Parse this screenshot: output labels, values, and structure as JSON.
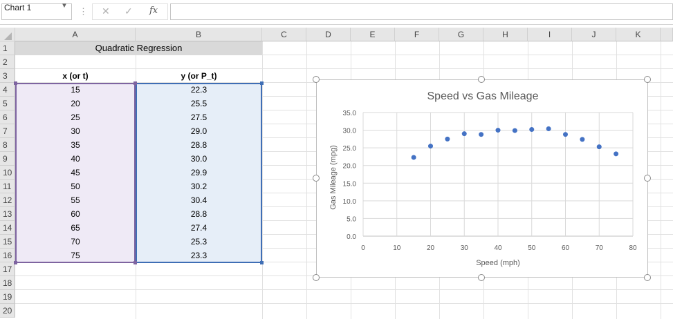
{
  "formula_bar": {
    "name_box": "Chart 1",
    "menu_dots": "⋮",
    "cancel_glyph": "✕",
    "enter_glyph": "✓",
    "fx_label": "fx",
    "formula_value": ""
  },
  "columns": [
    "A",
    "B",
    "C",
    "D",
    "E",
    "F",
    "G",
    "H",
    "I",
    "J",
    "K"
  ],
  "rows": [
    "1",
    "2",
    "3",
    "4",
    "5",
    "6",
    "7",
    "8",
    "9",
    "10",
    "11",
    "12",
    "13",
    "14",
    "15",
    "16",
    "17",
    "18",
    "19",
    "20"
  ],
  "sheet": {
    "title": "Quadratic Regression",
    "x_header": "x (or t)",
    "y_header": "y (or P_t)",
    "x_values": [
      "15",
      "20",
      "25",
      "30",
      "35",
      "40",
      "45",
      "50",
      "55",
      "60",
      "65",
      "70",
      "75"
    ],
    "y_values": [
      "22.3",
      "25.5",
      "27.5",
      "29.0",
      "28.8",
      "30.0",
      "29.9",
      "30.2",
      "30.4",
      "28.8",
      "27.4",
      "25.3",
      "23.3"
    ]
  },
  "colors": {
    "x_range_border": "#7e64a0",
    "y_range_border": "#3f6eb5",
    "marker": "#4472c4"
  },
  "chart_data": {
    "type": "scatter",
    "title": "Speed vs Gas Mileage",
    "xlabel": "Speed (mph)",
    "ylabel": "Gas Mileage (mpg)",
    "xlim": [
      0,
      80
    ],
    "ylim": [
      0,
      35
    ],
    "x_ticks": [
      "0",
      "10",
      "20",
      "30",
      "40",
      "50",
      "60",
      "70",
      "80"
    ],
    "y_ticks": [
      "0.0",
      "5.0",
      "10.0",
      "15.0",
      "20.0",
      "25.0",
      "30.0",
      "35.0"
    ],
    "x_tick_values": [
      0,
      10,
      20,
      30,
      40,
      50,
      60,
      70,
      80
    ],
    "y_tick_values": [
      0,
      5,
      10,
      15,
      20,
      25,
      30,
      35
    ],
    "grid": true,
    "legend": "none",
    "x": [
      15,
      20,
      25,
      30,
      35,
      40,
      45,
      50,
      55,
      60,
      65,
      70,
      75
    ],
    "y": [
      22.3,
      25.5,
      27.5,
      29.0,
      28.8,
      30.0,
      29.9,
      30.2,
      30.4,
      28.8,
      27.4,
      25.3,
      23.3
    ]
  }
}
